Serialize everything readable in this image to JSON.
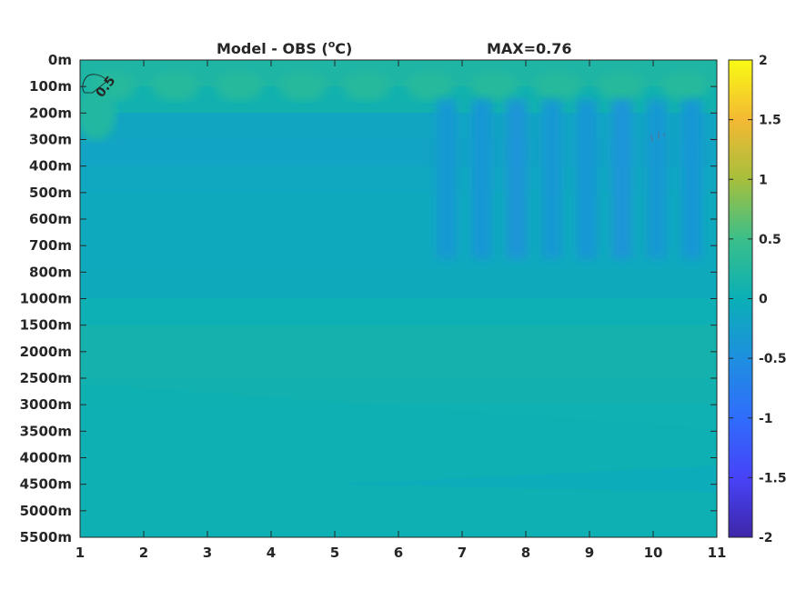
{
  "chart_data": {
    "type": "heatmap",
    "title_left": "Model - OBS (",
    "title_degree": "o",
    "title_unit": "C)",
    "title_right": "MAX=0.76",
    "x_ticks": [
      1,
      2,
      3,
      4,
      5,
      6,
      7,
      8,
      9,
      10,
      11
    ],
    "xlim": [
      1,
      11
    ],
    "y_ticks": [
      "0m",
      "100m",
      "200m",
      "300m",
      "400m",
      "500m",
      "600m",
      "700m",
      "800m",
      "1000m",
      "1500m",
      "2000m",
      "2500m",
      "3000m",
      "3500m",
      "4000m",
      "4500m",
      "5000m",
      "5500m"
    ],
    "y_direction": "reversed",
    "colormap": "parula",
    "clim": [
      -2,
      2
    ],
    "colorbar_ticks": [
      "2",
      "1.5",
      "1",
      "0.5",
      "0",
      "-0.5",
      "-1",
      "-1.5",
      "-2"
    ],
    "contour_levels": [
      0.5
    ],
    "contour_label": "0.5",
    "depth_profile": [
      {
        "depth": "0m",
        "value": 0.15
      },
      {
        "depth": "100m",
        "value": 0.25
      },
      {
        "depth": "200m",
        "value": -0.1
      },
      {
        "depth": "300m",
        "value": -0.2
      },
      {
        "depth": "400m",
        "value": -0.15
      },
      {
        "depth": "500m",
        "value": -0.1
      },
      {
        "depth": "600m",
        "value": -0.1
      },
      {
        "depth": "700m",
        "value": -0.1
      },
      {
        "depth": "800m",
        "value": -0.1
      },
      {
        "depth": "1000m",
        "value": -0.05
      },
      {
        "depth": "1500m",
        "value": 0.1
      },
      {
        "depth": "2000m",
        "value": 0.1
      },
      {
        "depth": "2500m",
        "value": 0.1
      },
      {
        "depth": "3000m",
        "value": 0.05
      },
      {
        "depth": "3500m",
        "value": 0.05
      },
      {
        "depth": "4000m",
        "value": 0.0
      },
      {
        "depth": "4500m",
        "value": 0.0
      },
      {
        "depth": "5000m",
        "value": 0.0
      },
      {
        "depth": "5500m",
        "value": 0.0
      }
    ],
    "colors": {
      "c_pos_0_25": "#3dbf8e",
      "c_pos_0_1": "#1fb7a9",
      "c_pos_0_05": "#16b3ae",
      "c_zero": "#0bb0b8",
      "c_neg_0_1": "#0aa9c4",
      "c_neg_0_2": "#14a2cf",
      "c_neg_0_35": "#2694dc",
      "axis": "#262626"
    }
  }
}
